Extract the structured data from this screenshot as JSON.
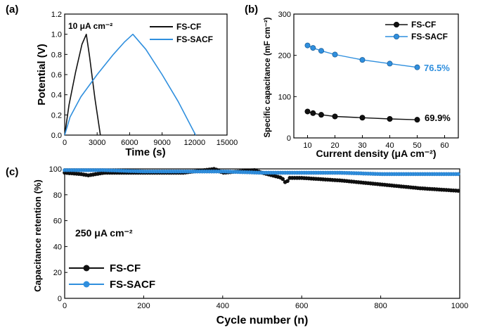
{
  "colors": {
    "black_series": "#111111",
    "blue_series": "#2f8fde",
    "annotation_blue": "#2f8fde"
  },
  "chart_data": [
    {
      "panel": "(a)",
      "type": "line",
      "xlabel": "Time (s)",
      "ylabel": "Potential (V)",
      "xlim": [
        0,
        15000
      ],
      "ylim": [
        0,
        1.2
      ],
      "xticks": [
        0,
        3000,
        6000,
        9000,
        12000,
        15000
      ],
      "yticks": [
        0.0,
        0.2,
        0.4,
        0.6,
        0.8,
        1.0,
        1.2
      ],
      "xtick_labels": [
        "0",
        "3000",
        "6000",
        "9000",
        "12000",
        "15000"
      ],
      "ytick_labels": [
        "0.0",
        "0.2",
        "0.4",
        "0.6",
        "0.8",
        "1.0",
        "1.2"
      ],
      "annotation": "10 μA cm⁻²",
      "legend_position": "top-right",
      "series": [
        {
          "name": "FS-CF",
          "color": "#111111",
          "x": [
            0,
            400,
            1000,
            1600,
            2000,
            2300,
            2800,
            3300
          ],
          "y": [
            0.0,
            0.3,
            0.62,
            0.9,
            1.0,
            0.78,
            0.36,
            0.0
          ]
        },
        {
          "name": "FS-SACF",
          "color": "#2f8fde",
          "x": [
            0,
            500,
            1500,
            3000,
            4500,
            5500,
            6300,
            7500,
            9000,
            10500,
            12100
          ],
          "y": [
            0.0,
            0.18,
            0.38,
            0.6,
            0.8,
            0.92,
            1.0,
            0.85,
            0.6,
            0.33,
            0.0
          ]
        }
      ]
    },
    {
      "panel": "(b)",
      "type": "line",
      "xlabel": "Current density (μA cm⁻²)",
      "ylabel": "Specific capacitance (mF cm⁻²)",
      "xlim": [
        5,
        65
      ],
      "ylim": [
        0,
        300
      ],
      "xticks": [
        10,
        20,
        30,
        40,
        50,
        60
      ],
      "yticks": [
        0,
        100,
        200,
        300
      ],
      "xtick_labels": [
        "10",
        "20",
        "30",
        "40",
        "50",
        "60"
      ],
      "ytick_labels": [
        "0",
        "100",
        "200",
        "300"
      ],
      "legend_position": "top-right",
      "series": [
        {
          "name": "FS-CF",
          "color": "#111111",
          "x": [
            10,
            12,
            15,
            20,
            30,
            40,
            50
          ],
          "y": [
            64,
            60,
            56,
            52,
            49,
            46,
            44
          ],
          "label": "69.9%"
        },
        {
          "name": "FS-SACF",
          "color": "#2f8fde",
          "x": [
            10,
            12,
            15,
            20,
            30,
            40,
            50
          ],
          "y": [
            224,
            218,
            211,
            202,
            189,
            180,
            171
          ],
          "label": "76.5%"
        }
      ]
    },
    {
      "panel": "(c)",
      "type": "line",
      "xlabel": "Cycle number (n)",
      "ylabel": "Capacitance retention (%)",
      "xlim": [
        0,
        1000
      ],
      "ylim": [
        0,
        100
      ],
      "xticks": [
        0,
        200,
        400,
        600,
        800,
        1000
      ],
      "yticks": [
        0,
        20,
        40,
        60,
        80,
        100
      ],
      "xtick_labels": [
        "0",
        "200",
        "400",
        "600",
        "800",
        "1000"
      ],
      "ytick_labels": [
        "0",
        "20",
        "40",
        "60",
        "80",
        "100"
      ],
      "annotation": "250 μA cm⁻²",
      "legend_position": "bottom-left",
      "series": [
        {
          "name": "FS-CF",
          "color": "#111111",
          "x": [
            0,
            40,
            60,
            100,
            200,
            300,
            380,
            400,
            480,
            500,
            550,
            560,
            570,
            600,
            650,
            700,
            800,
            900,
            1000
          ],
          "y": [
            97,
            96,
            95,
            97,
            97,
            97,
            100,
            97,
            99,
            97,
            93,
            89,
            93,
            93,
            92,
            91,
            88,
            85,
            83
          ]
        },
        {
          "name": "FS-SACF",
          "color": "#2f8fde",
          "x": [
            0,
            100,
            200,
            300,
            400,
            500,
            600,
            700,
            800,
            900,
            1000
          ],
          "y": [
            99,
            99,
            98,
            98,
            98,
            97,
            97,
            97,
            96,
            96,
            96
          ]
        }
      ]
    }
  ]
}
